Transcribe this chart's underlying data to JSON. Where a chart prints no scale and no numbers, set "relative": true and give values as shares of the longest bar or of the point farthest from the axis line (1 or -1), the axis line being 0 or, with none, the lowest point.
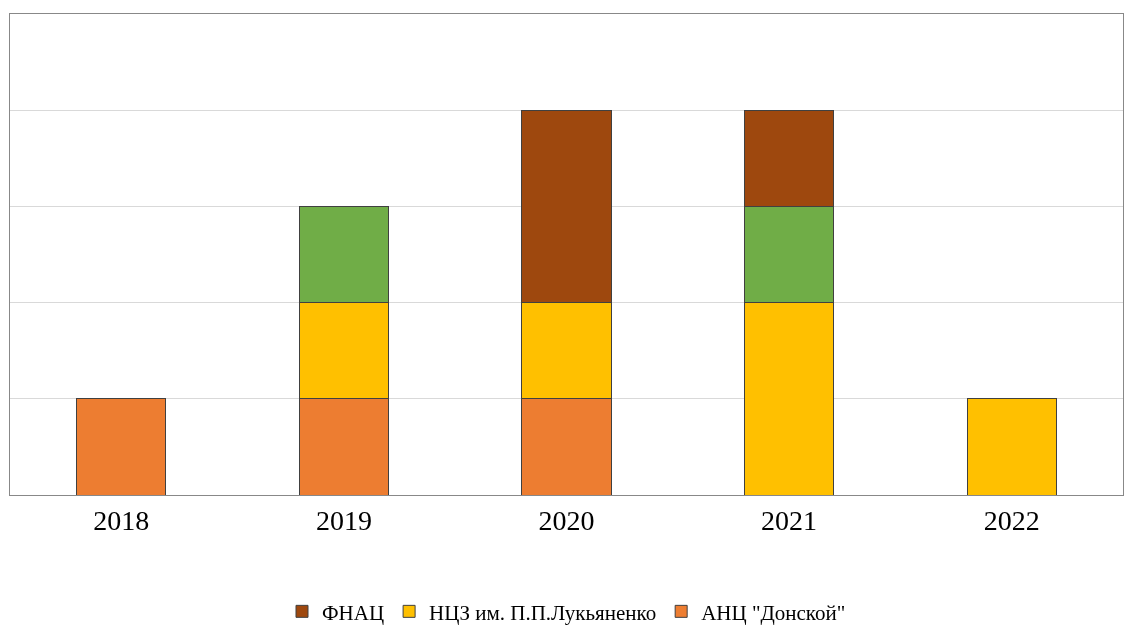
{
  "chart_data": {
    "type": "bar",
    "stacked": true,
    "relative": true,
    "grid": "y",
    "legend": "bottom",
    "categories": [
      "2018",
      "2019",
      "2020",
      "2021",
      "2022"
    ],
    "series": [
      {
        "name": "АНЦ \"Донской\"",
        "color": "#ed7d31",
        "values": [
          0.25,
          0.25,
          0.25,
          null,
          null
        ]
      },
      {
        "name": "НЦЗ им. П.П.Лукьяненко",
        "color": "#ffc000",
        "values": [
          null,
          0.25,
          0.25,
          0.5,
          0.25
        ]
      },
      {
        "color": "#70ad47",
        "values": [
          null,
          0.25,
          null,
          0.25,
          null
        ]
      },
      {
        "name": "ФНАЦ",
        "color": "#9e480e",
        "values": [
          null,
          null,
          0.5,
          0.25,
          null
        ]
      }
    ]
  }
}
